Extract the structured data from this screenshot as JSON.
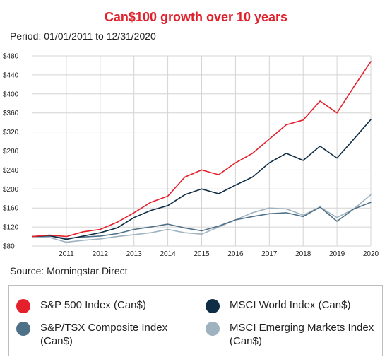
{
  "title": "Can$100 growth over 10 years",
  "subtitle": "Period: 01/01/2011 to 12/31/2020",
  "source": "Source: Morningstar Direct",
  "legend": [
    {
      "label": "S&P 500 Index (Can$)",
      "color": "#e3202b"
    },
    {
      "label": "MSCI World Index (Can$)",
      "color": "#0f2d45"
    },
    {
      "label": "S&P/TSX Composite Index (Can$)",
      "color": "#4f7188"
    },
    {
      "label": "MSCI Emerging Markets Index (Can$)",
      "color": "#9fb2c0"
    }
  ],
  "chart_data": {
    "type": "line",
    "title": "Can$100 growth over 10 years",
    "subtitle": "Period: 01/01/2011 to 12/31/2020",
    "xlabel": "",
    "ylabel": "",
    "xlim": [
      2010,
      2020
    ],
    "ylim": [
      80,
      480
    ],
    "x_ticks": [
      "2011",
      "2012",
      "2013",
      "2014",
      "2015",
      "2016",
      "2017",
      "2018",
      "2019",
      "2020"
    ],
    "y_ticks": [
      "$80",
      "$120",
      "$160",
      "$200",
      "$240",
      "$280",
      "$320",
      "$360",
      "$400",
      "$440",
      "$480"
    ],
    "grid": true,
    "legend_position": "bottom",
    "x": [
      "2010",
      "2010.5",
      "2011",
      "2011.5",
      "2012",
      "2012.5",
      "2013",
      "2013.5",
      "2014",
      "2014.5",
      "2015",
      "2015.5",
      "2016",
      "2016.5",
      "2017",
      "2017.5",
      "2018",
      "2018.5",
      "2019",
      "2019.5",
      "2020"
    ],
    "series": [
      {
        "name": "S&P 500 Index (Can$)",
        "color": "#e3202b",
        "values": [
          100,
          103,
          100,
          110,
          115,
          130,
          150,
          172,
          185,
          225,
          240,
          230,
          255,
          275,
          305,
          335,
          345,
          385,
          360,
          415,
          468
        ]
      },
      {
        "name": "MSCI World Index (Can$)",
        "color": "#0f2d45",
        "values": [
          100,
          102,
          94,
          101,
          108,
          118,
          140,
          155,
          165,
          188,
          200,
          190,
          208,
          225,
          255,
          275,
          260,
          290,
          265,
          305,
          346
        ]
      },
      {
        "name": "S&P/TSX Composite Index (Can$)",
        "color": "#4f7188",
        "values": [
          100,
          101,
          96,
          99,
          101,
          106,
          115,
          120,
          126,
          118,
          112,
          122,
          135,
          142,
          148,
          150,
          142,
          162,
          132,
          158,
          172
        ]
      },
      {
        "name": "MSCI Emerging Markets Index (Can$)",
        "color": "#9fb2c0",
        "values": [
          100,
          98,
          88,
          92,
          95,
          100,
          104,
          108,
          115,
          108,
          105,
          120,
          135,
          150,
          160,
          158,
          145,
          162,
          140,
          158,
          188
        ]
      }
    ]
  }
}
